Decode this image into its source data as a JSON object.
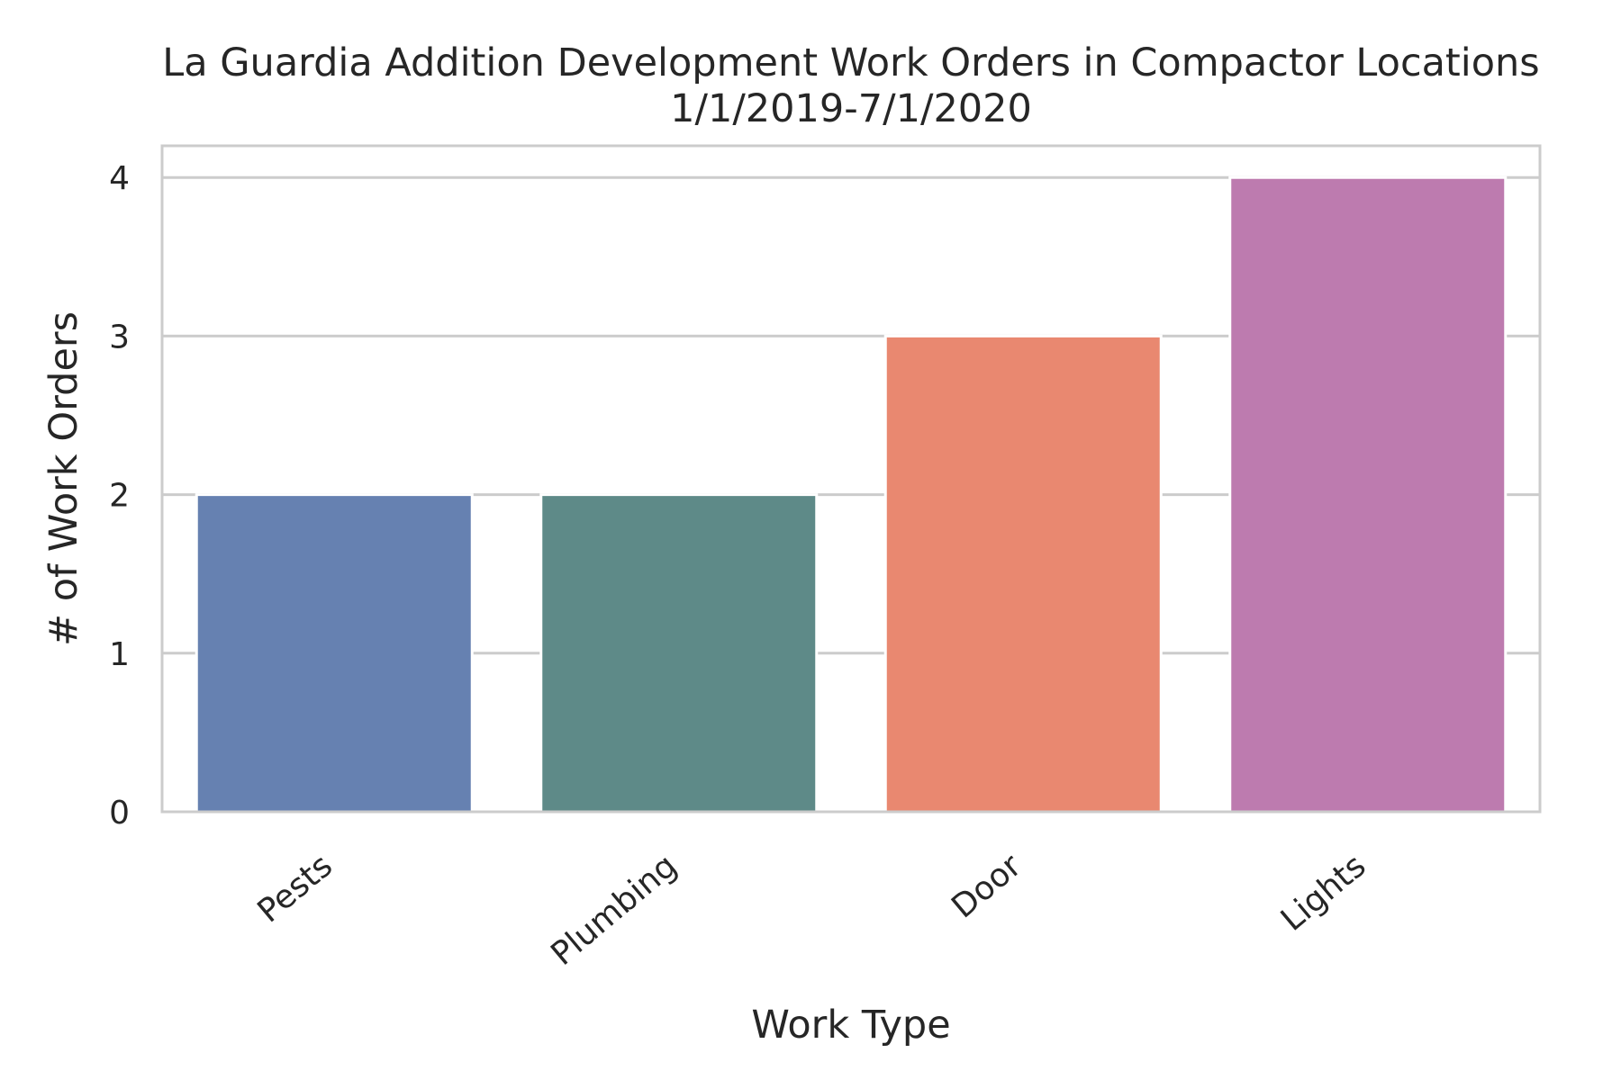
{
  "chart_data": {
    "type": "bar",
    "title": "La Guardia Addition Development Work Orders in Compactor Locations",
    "subtitle": "1/1/2019-7/1/2020",
    "xlabel": "Work Type",
    "ylabel": "# of Work Orders",
    "categories": [
      "Pests",
      "Plumbing",
      "Door",
      "Lights"
    ],
    "values": [
      2,
      2,
      3,
      4
    ],
    "colors": [
      "#6681b1",
      "#5e8a88",
      "#e98870",
      "#bd7baf"
    ],
    "ylim": [
      0,
      4.2
    ],
    "yticks": [
      0,
      1,
      2,
      3,
      4
    ],
    "grid": true,
    "legend": "none"
  }
}
